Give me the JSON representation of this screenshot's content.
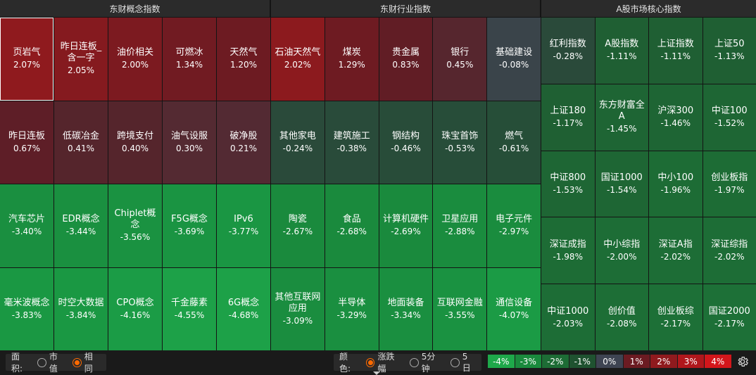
{
  "sections": [
    {
      "title": "东财概念指数",
      "tiles": [
        {
          "name": "页岩气",
          "pct": "2.07%",
          "color": "#8f1a1e"
        },
        {
          "name": "昨日连板_含一字",
          "pct": "2.05%",
          "color": "#851a1f"
        },
        {
          "name": "油价相关",
          "pct": "2.00%",
          "color": "#7c1a20"
        },
        {
          "name": "可燃冰",
          "pct": "1.34%",
          "color": "#711b22"
        },
        {
          "name": "天然气",
          "pct": "1.20%",
          "color": "#6d1b22"
        },
        {
          "name": "昨日连板",
          "pct": "0.67%",
          "color": "#5e1e27"
        },
        {
          "name": "低碳冶金",
          "pct": "0.41%",
          "color": "#55252c"
        },
        {
          "name": "跨境支付",
          "pct": "0.40%",
          "color": "#55252c"
        },
        {
          "name": "油气设服",
          "pct": "0.30%",
          "color": "#542a32"
        },
        {
          "name": "破净股",
          "pct": "0.21%",
          "color": "#532a33"
        },
        {
          "name": "汽车芯片",
          "pct": "-3.40%",
          "color": "#1a8f40"
        },
        {
          "name": "EDR概念",
          "pct": "-3.44%",
          "color": "#1a9040"
        },
        {
          "name": "Chiplet概念",
          "pct": "-3.56%",
          "color": "#1a9241"
        },
        {
          "name": "F5G概念",
          "pct": "-3.69%",
          "color": "#1a9442"
        },
        {
          "name": "IPv6",
          "pct": "-3.77%",
          "color": "#1a9643"
        },
        {
          "name": "毫米波概念",
          "pct": "-3.83%",
          "color": "#1a9843"
        },
        {
          "name": "时空大数据",
          "pct": "-3.84%",
          "color": "#1a9843"
        },
        {
          "name": "CPO概念",
          "pct": "-4.16%",
          "color": "#1b9c46"
        },
        {
          "name": "千金藤素",
          "pct": "-4.55%",
          "color": "#1da148"
        },
        {
          "name": "6G概念",
          "pct": "-4.68%",
          "color": "#1da148"
        }
      ]
    },
    {
      "title": "东财行业指数",
      "tiles": [
        {
          "name": "石油天然气",
          "pct": "2.02%",
          "color": "#8c1a1e"
        },
        {
          "name": "煤炭",
          "pct": "1.29%",
          "color": "#6e1b22"
        },
        {
          "name": "贵金属",
          "pct": "0.83%",
          "color": "#611d25"
        },
        {
          "name": "银行",
          "pct": "0.45%",
          "color": "#56262e"
        },
        {
          "name": "基础建设",
          "pct": "-0.08%",
          "color": "#3a444a"
        },
        {
          "name": "其他家电",
          "pct": "-0.24%",
          "color": "#2a4a3a"
        },
        {
          "name": "建筑施工",
          "pct": "-0.38%",
          "color": "#294b3a"
        },
        {
          "name": "钢结构",
          "pct": "-0.46%",
          "color": "#284c39"
        },
        {
          "name": "珠宝首饰",
          "pct": "-0.53%",
          "color": "#274d39"
        },
        {
          "name": "燃气",
          "pct": "-0.61%",
          "color": "#264e38"
        },
        {
          "name": "陶瓷",
          "pct": "-2.67%",
          "color": "#1a8a3d"
        },
        {
          "name": "食品",
          "pct": "-2.68%",
          "color": "#1a8a3d"
        },
        {
          "name": "计算机硬件",
          "pct": "-2.69%",
          "color": "#1a8a3d"
        },
        {
          "name": "卫星应用",
          "pct": "-2.88%",
          "color": "#1a8c3e"
        },
        {
          "name": "电子元件",
          "pct": "-2.97%",
          "color": "#1a8c3e"
        },
        {
          "name": "其他互联网应用",
          "pct": "-3.09%",
          "color": "#1a8d3f"
        },
        {
          "name": "半导体",
          "pct": "-3.29%",
          "color": "#1a8f40"
        },
        {
          "name": "地面装备",
          "pct": "-3.34%",
          "color": "#1a8f40"
        },
        {
          "name": "互联网金融",
          "pct": "-3.55%",
          "color": "#1a9241"
        },
        {
          "name": "通信设备",
          "pct": "-4.07%",
          "color": "#1b9b45"
        }
      ]
    },
    {
      "title": "A股市场核心指数",
      "tiles": [
        {
          "name": "红利指数",
          "pct": "-0.28%",
          "color": "#2a4a3a"
        },
        {
          "name": "A股指数",
          "pct": "-1.11%",
          "color": "#1f5f33"
        },
        {
          "name": "上证指数",
          "pct": "-1.11%",
          "color": "#1f5f33"
        },
        {
          "name": "上证50",
          "pct": "-1.13%",
          "color": "#1f5f33"
        },
        {
          "name": "上证180",
          "pct": "-1.17%",
          "color": "#1f6033"
        },
        {
          "name": "东方财富全A",
          "pct": "-1.45%",
          "color": "#1e6534"
        },
        {
          "name": "沪深300",
          "pct": "-1.46%",
          "color": "#1e6534"
        },
        {
          "name": "中证100",
          "pct": "-1.52%",
          "color": "#1e6634"
        },
        {
          "name": "中证800",
          "pct": "-1.53%",
          "color": "#1e6634"
        },
        {
          "name": "国证1000",
          "pct": "-1.54%",
          "color": "#1e6634"
        },
        {
          "name": "中小100",
          "pct": "-1.96%",
          "color": "#1d6c35"
        },
        {
          "name": "创业板指",
          "pct": "-1.97%",
          "color": "#1d6c35"
        },
        {
          "name": "深证成指",
          "pct": "-1.98%",
          "color": "#1d6c35"
        },
        {
          "name": "中小综指",
          "pct": "-2.00%",
          "color": "#1d6d36"
        },
        {
          "name": "深证A指",
          "pct": "-2.02%",
          "color": "#1d6d36"
        },
        {
          "name": "深证综指",
          "pct": "-2.02%",
          "color": "#1d6d36"
        },
        {
          "name": "中证1000",
          "pct": "-2.03%",
          "color": "#1d6d36"
        },
        {
          "name": "创价值",
          "pct": "-2.08%",
          "color": "#1d6e36"
        },
        {
          "name": "创业板综",
          "pct": "-2.17%",
          "color": "#1d7037"
        },
        {
          "name": "国证2000",
          "pct": "-2.17%",
          "color": "#1d7037"
        }
      ]
    }
  ],
  "area_control": {
    "label": "面积:",
    "options": [
      "市值",
      "相同"
    ],
    "selected": 1
  },
  "color_control": {
    "label": "颜色:",
    "options": [
      "涨跌幅",
      "5分钟",
      "5日"
    ],
    "selected": 0
  },
  "legend": [
    {
      "label": "-4%",
      "color": "#1ea84a"
    },
    {
      "label": "-3%",
      "color": "#1a8a3d"
    },
    {
      "label": "-2%",
      "color": "#1d6c35"
    },
    {
      "label": "-1%",
      "color": "#1f5230"
    },
    {
      "label": "0%",
      "color": "#3e4452"
    },
    {
      "label": "1%",
      "color": "#6b1b22"
    },
    {
      "label": "2%",
      "color": "#8f1a1e"
    },
    {
      "label": "3%",
      "color": "#b0171c"
    },
    {
      "label": "4%",
      "color": "#d3161b"
    }
  ],
  "icons": {
    "settings": "gear-icon",
    "expand": "caret-down-icon"
  }
}
